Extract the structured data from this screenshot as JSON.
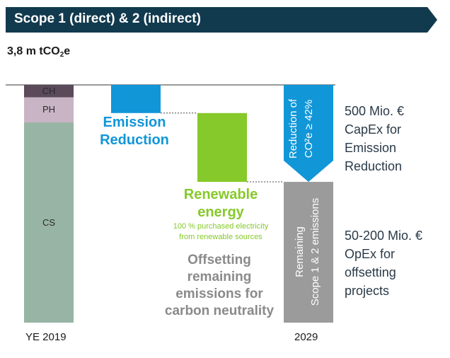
{
  "header": {
    "title": "Scope 1 (direct) & 2 (indirect)"
  },
  "total": {
    "prefix": "3,8 m tCO",
    "sub": "2",
    "suffix": "e"
  },
  "chart_data": {
    "type": "bar",
    "subtype": "waterfall",
    "unit": "m tCO2e",
    "ylim": [
      0,
      3.8
    ],
    "baseline": {
      "category": "YE 2019",
      "total": 3.8,
      "segments": [
        {
          "name": "CH",
          "value": 0.2,
          "color": "#5a4a5a"
        },
        {
          "name": "PH",
          "value": 0.4,
          "color": "#c8b4c4"
        },
        {
          "name": "CS",
          "value": 3.2,
          "color": "#98b4a4"
        }
      ]
    },
    "steps": [
      {
        "name": "Emission Reduction",
        "from": 3.8,
        "to": 3.35,
        "color": "#1196d8"
      },
      {
        "name": "Renewable energy",
        "from": 3.35,
        "to": 2.25,
        "color": "#86c92a"
      }
    ],
    "target": {
      "category": "2029",
      "reduction": {
        "label_lines": [
          "Reduction of",
          "CO²e ≥ 42%"
        ],
        "from": 3.8,
        "to": 2.25,
        "color": "#1196d8"
      },
      "remaining": {
        "label_lines": [
          "Remaining",
          "Scope 1 & 2 emissions"
        ],
        "value": 2.25,
        "color": "#9b9b9b"
      }
    }
  },
  "labels": {
    "emission_lines": [
      "Emission",
      "Reduction"
    ],
    "renewable_lines": [
      "Renewable",
      "energy"
    ],
    "renewable_sub_lines": [
      "100 % purchased electricity",
      "from renewable sources"
    ],
    "offset_lines": [
      "Offsetting",
      "remaining",
      "emissions for",
      "carbon neutrality"
    ],
    "x_left": "YE 2019",
    "x_right": "2029"
  },
  "right_text": {
    "capex_lines": [
      "500 Mio. €",
      "CapEx for",
      "Emission",
      "Reduction"
    ],
    "opex_lines": [
      "50-200 Mio. €",
      "OpEx for",
      "offsetting",
      "projects"
    ]
  },
  "colors": {
    "banner": "#123a4e",
    "blue": "#1196d8",
    "green": "#86c92a",
    "gray": "#9b9b9b",
    "dark_text": "#2a3a48"
  }
}
